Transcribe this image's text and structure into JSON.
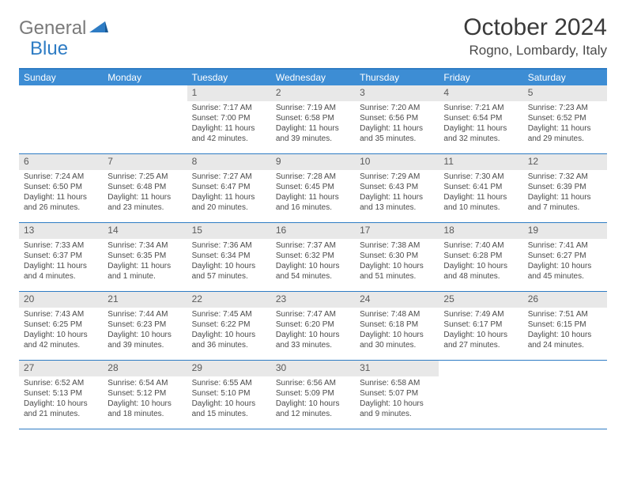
{
  "logo": {
    "part1": "General",
    "part2": "Blue"
  },
  "title": "October 2024",
  "location": "Rogno, Lombardy, Italy",
  "colors": {
    "header_bg": "#3d8dd4",
    "border": "#2e7cc4",
    "daynum_bg": "#e8e8e8",
    "text": "#4a4a4a"
  },
  "weekdays": [
    "Sunday",
    "Monday",
    "Tuesday",
    "Wednesday",
    "Thursday",
    "Friday",
    "Saturday"
  ],
  "weeks": [
    [
      {
        "n": "",
        "sr": "",
        "ss": "",
        "dl": ""
      },
      {
        "n": "",
        "sr": "",
        "ss": "",
        "dl": ""
      },
      {
        "n": "1",
        "sr": "Sunrise: 7:17 AM",
        "ss": "Sunset: 7:00 PM",
        "dl": "Daylight: 11 hours and 42 minutes."
      },
      {
        "n": "2",
        "sr": "Sunrise: 7:19 AM",
        "ss": "Sunset: 6:58 PM",
        "dl": "Daylight: 11 hours and 39 minutes."
      },
      {
        "n": "3",
        "sr": "Sunrise: 7:20 AM",
        "ss": "Sunset: 6:56 PM",
        "dl": "Daylight: 11 hours and 35 minutes."
      },
      {
        "n": "4",
        "sr": "Sunrise: 7:21 AM",
        "ss": "Sunset: 6:54 PM",
        "dl": "Daylight: 11 hours and 32 minutes."
      },
      {
        "n": "5",
        "sr": "Sunrise: 7:23 AM",
        "ss": "Sunset: 6:52 PM",
        "dl": "Daylight: 11 hours and 29 minutes."
      }
    ],
    [
      {
        "n": "6",
        "sr": "Sunrise: 7:24 AM",
        "ss": "Sunset: 6:50 PM",
        "dl": "Daylight: 11 hours and 26 minutes."
      },
      {
        "n": "7",
        "sr": "Sunrise: 7:25 AM",
        "ss": "Sunset: 6:48 PM",
        "dl": "Daylight: 11 hours and 23 minutes."
      },
      {
        "n": "8",
        "sr": "Sunrise: 7:27 AM",
        "ss": "Sunset: 6:47 PM",
        "dl": "Daylight: 11 hours and 20 minutes."
      },
      {
        "n": "9",
        "sr": "Sunrise: 7:28 AM",
        "ss": "Sunset: 6:45 PM",
        "dl": "Daylight: 11 hours and 16 minutes."
      },
      {
        "n": "10",
        "sr": "Sunrise: 7:29 AM",
        "ss": "Sunset: 6:43 PM",
        "dl": "Daylight: 11 hours and 13 minutes."
      },
      {
        "n": "11",
        "sr": "Sunrise: 7:30 AM",
        "ss": "Sunset: 6:41 PM",
        "dl": "Daylight: 11 hours and 10 minutes."
      },
      {
        "n": "12",
        "sr": "Sunrise: 7:32 AM",
        "ss": "Sunset: 6:39 PM",
        "dl": "Daylight: 11 hours and 7 minutes."
      }
    ],
    [
      {
        "n": "13",
        "sr": "Sunrise: 7:33 AM",
        "ss": "Sunset: 6:37 PM",
        "dl": "Daylight: 11 hours and 4 minutes."
      },
      {
        "n": "14",
        "sr": "Sunrise: 7:34 AM",
        "ss": "Sunset: 6:35 PM",
        "dl": "Daylight: 11 hours and 1 minute."
      },
      {
        "n": "15",
        "sr": "Sunrise: 7:36 AM",
        "ss": "Sunset: 6:34 PM",
        "dl": "Daylight: 10 hours and 57 minutes."
      },
      {
        "n": "16",
        "sr": "Sunrise: 7:37 AM",
        "ss": "Sunset: 6:32 PM",
        "dl": "Daylight: 10 hours and 54 minutes."
      },
      {
        "n": "17",
        "sr": "Sunrise: 7:38 AM",
        "ss": "Sunset: 6:30 PM",
        "dl": "Daylight: 10 hours and 51 minutes."
      },
      {
        "n": "18",
        "sr": "Sunrise: 7:40 AM",
        "ss": "Sunset: 6:28 PM",
        "dl": "Daylight: 10 hours and 48 minutes."
      },
      {
        "n": "19",
        "sr": "Sunrise: 7:41 AM",
        "ss": "Sunset: 6:27 PM",
        "dl": "Daylight: 10 hours and 45 minutes."
      }
    ],
    [
      {
        "n": "20",
        "sr": "Sunrise: 7:43 AM",
        "ss": "Sunset: 6:25 PM",
        "dl": "Daylight: 10 hours and 42 minutes."
      },
      {
        "n": "21",
        "sr": "Sunrise: 7:44 AM",
        "ss": "Sunset: 6:23 PM",
        "dl": "Daylight: 10 hours and 39 minutes."
      },
      {
        "n": "22",
        "sr": "Sunrise: 7:45 AM",
        "ss": "Sunset: 6:22 PM",
        "dl": "Daylight: 10 hours and 36 minutes."
      },
      {
        "n": "23",
        "sr": "Sunrise: 7:47 AM",
        "ss": "Sunset: 6:20 PM",
        "dl": "Daylight: 10 hours and 33 minutes."
      },
      {
        "n": "24",
        "sr": "Sunrise: 7:48 AM",
        "ss": "Sunset: 6:18 PM",
        "dl": "Daylight: 10 hours and 30 minutes."
      },
      {
        "n": "25",
        "sr": "Sunrise: 7:49 AM",
        "ss": "Sunset: 6:17 PM",
        "dl": "Daylight: 10 hours and 27 minutes."
      },
      {
        "n": "26",
        "sr": "Sunrise: 7:51 AM",
        "ss": "Sunset: 6:15 PM",
        "dl": "Daylight: 10 hours and 24 minutes."
      }
    ],
    [
      {
        "n": "27",
        "sr": "Sunrise: 6:52 AM",
        "ss": "Sunset: 5:13 PM",
        "dl": "Daylight: 10 hours and 21 minutes."
      },
      {
        "n": "28",
        "sr": "Sunrise: 6:54 AM",
        "ss": "Sunset: 5:12 PM",
        "dl": "Daylight: 10 hours and 18 minutes."
      },
      {
        "n": "29",
        "sr": "Sunrise: 6:55 AM",
        "ss": "Sunset: 5:10 PM",
        "dl": "Daylight: 10 hours and 15 minutes."
      },
      {
        "n": "30",
        "sr": "Sunrise: 6:56 AM",
        "ss": "Sunset: 5:09 PM",
        "dl": "Daylight: 10 hours and 12 minutes."
      },
      {
        "n": "31",
        "sr": "Sunrise: 6:58 AM",
        "ss": "Sunset: 5:07 PM",
        "dl": "Daylight: 10 hours and 9 minutes."
      },
      {
        "n": "",
        "sr": "",
        "ss": "",
        "dl": ""
      },
      {
        "n": "",
        "sr": "",
        "ss": "",
        "dl": ""
      }
    ]
  ]
}
